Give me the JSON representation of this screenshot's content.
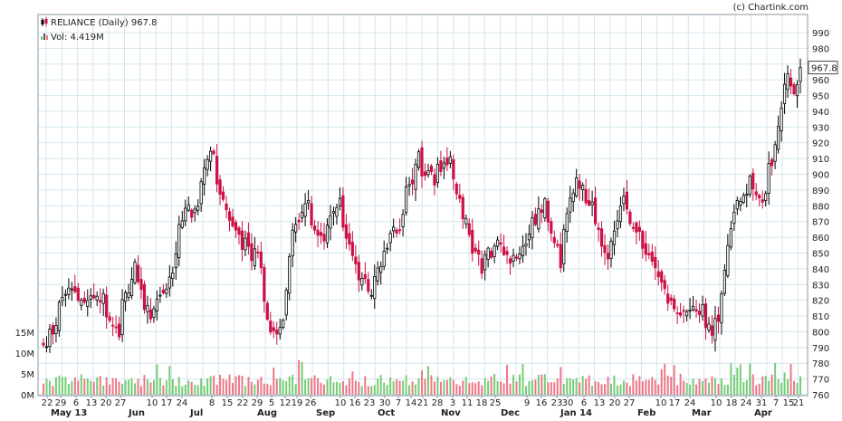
{
  "credit": "(c) Chartink.com",
  "legend": {
    "price_label": "RELIANCE (Daily) 967.8",
    "volume_label": "Vol: 4.419M"
  },
  "colors": {
    "up": "#000000",
    "down": "#cc1144",
    "vol_up": "#77cc77",
    "vol_down": "#ee7788",
    "grid": "#d4e6ee"
  },
  "chart_data": {
    "type": "candlestick",
    "symbol": "RELIANCE",
    "interval": "Daily",
    "last_price": 967.8,
    "last_price_label": "967.8",
    "last_volume": "4.419M",
    "y_axis": {
      "range": [
        760,
        990
      ],
      "ticks": [
        990,
        980,
        970,
        960,
        950,
        940,
        930,
        920,
        910,
        900,
        890,
        880,
        870,
        860,
        850,
        840,
        830,
        820,
        810,
        800,
        790,
        780,
        770,
        760
      ]
    },
    "volume_axis": {
      "ticks": [
        "15M",
        "10M",
        "5M",
        "0M"
      ],
      "tick_values": [
        15,
        10,
        5,
        0
      ],
      "max": 20
    },
    "x_tick_labels": [
      "22",
      "29",
      "6",
      "13",
      "20",
      "27",
      "10",
      "17",
      "24",
      "8",
      "15",
      "22",
      "29",
      "5",
      "12",
      "19",
      "26",
      "10",
      "16",
      "23",
      "30",
      "7",
      "14",
      "21",
      "28",
      "3",
      "11",
      "18",
      "25",
      "9",
      "16",
      "23",
      "30",
      "6",
      "13",
      "20",
      "27",
      "10",
      "17",
      "24",
      "10",
      "18",
      "24",
      "31",
      "7",
      "15",
      "21"
    ],
    "month_labels": [
      "May 13",
      "Jun",
      "Jul",
      "Aug",
      "Sep",
      "Oct",
      "Nov",
      "Dec",
      "Jan 14",
      "Feb",
      "Mar",
      "Apr"
    ],
    "close_anchors": [
      {
        "date": "2013-05-20",
        "close": 790
      },
      {
        "date": "2013-05-31",
        "close": 830
      },
      {
        "date": "2013-06-07",
        "close": 815
      },
      {
        "date": "2013-06-14",
        "close": 825
      },
      {
        "date": "2013-06-21",
        "close": 800
      },
      {
        "date": "2013-06-28",
        "close": 840
      },
      {
        "date": "2013-07-05",
        "close": 810
      },
      {
        "date": "2013-07-12",
        "close": 830
      },
      {
        "date": "2013-07-16",
        "close": 835
      },
      {
        "date": "2013-07-18",
        "close": 870
      },
      {
        "date": "2013-07-26",
        "close": 880
      },
      {
        "date": "2013-08-02",
        "close": 915
      },
      {
        "date": "2013-08-09",
        "close": 870
      },
      {
        "date": "2013-08-16",
        "close": 855
      },
      {
        "date": "2013-08-23",
        "close": 845
      },
      {
        "date": "2013-08-28",
        "close": 795
      },
      {
        "date": "2013-09-03",
        "close": 810
      },
      {
        "date": "2013-09-06",
        "close": 865
      },
      {
        "date": "2013-09-13",
        "close": 880
      },
      {
        "date": "2013-09-20",
        "close": 860
      },
      {
        "date": "2013-09-27",
        "close": 885
      },
      {
        "date": "2013-10-04",
        "close": 845
      },
      {
        "date": "2013-10-11",
        "close": 825
      },
      {
        "date": "2013-10-18",
        "close": 855
      },
      {
        "date": "2013-10-25",
        "close": 870
      },
      {
        "date": "2013-11-01",
        "close": 910
      },
      {
        "date": "2013-11-08",
        "close": 895
      },
      {
        "date": "2013-11-15",
        "close": 910
      },
      {
        "date": "2013-11-22",
        "close": 870
      },
      {
        "date": "2013-11-29",
        "close": 840
      },
      {
        "date": "2013-12-06",
        "close": 855
      },
      {
        "date": "2013-12-13",
        "close": 845
      },
      {
        "date": "2013-12-20",
        "close": 860
      },
      {
        "date": "2013-12-27",
        "close": 880
      },
      {
        "date": "2014-01-03",
        "close": 845
      },
      {
        "date": "2014-01-10",
        "close": 900
      },
      {
        "date": "2014-01-17",
        "close": 880
      },
      {
        "date": "2014-01-24",
        "close": 845
      },
      {
        "date": "2014-01-31",
        "close": 885
      },
      {
        "date": "2014-02-07",
        "close": 865
      },
      {
        "date": "2014-02-14",
        "close": 840
      },
      {
        "date": "2014-02-21",
        "close": 820
      },
      {
        "date": "2014-02-28",
        "close": 810
      },
      {
        "date": "2014-03-07",
        "close": 815
      },
      {
        "date": "2014-03-12",
        "close": 800
      },
      {
        "date": "2014-03-14",
        "close": 810
      },
      {
        "date": "2014-03-17",
        "close": 825
      },
      {
        "date": "2014-03-20",
        "close": 870
      },
      {
        "date": "2014-03-28",
        "close": 895
      },
      {
        "date": "2014-04-03",
        "close": 880
      },
      {
        "date": "2014-04-08",
        "close": 910
      },
      {
        "date": "2014-04-11",
        "close": 940
      },
      {
        "date": "2014-04-15",
        "close": 960
      },
      {
        "date": "2014-04-17",
        "close": 950
      },
      {
        "date": "2014-04-21",
        "close": 968
      }
    ]
  }
}
